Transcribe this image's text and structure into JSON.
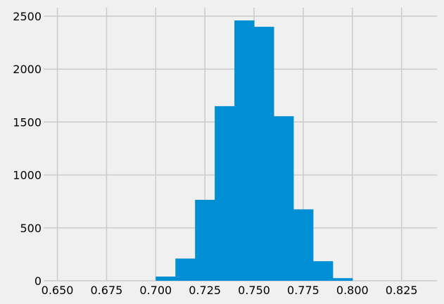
{
  "chart_data": {
    "type": "bar",
    "style": "histogram",
    "title": "",
    "xlabel": "",
    "ylabel": "",
    "xlim": [
      0.643,
      0.843
    ],
    "ylim": [
      0,
      2580
    ],
    "xticks": [
      0.65,
      0.675,
      0.7,
      0.725,
      0.75,
      0.775,
      0.8,
      0.825
    ],
    "xtick_labels": [
      "0.650",
      "0.675",
      "0.700",
      "0.725",
      "0.750",
      "0.775",
      "0.800",
      "0.825"
    ],
    "yticks": [
      0,
      500,
      1000,
      1500,
      2000,
      2500
    ],
    "ytick_labels": [
      "0",
      "500",
      "1000",
      "1500",
      "2000",
      "2500"
    ],
    "grid": true,
    "legend": "none",
    "bin_edges": [
      0.7,
      0.71,
      0.72,
      0.73,
      0.74,
      0.75,
      0.76,
      0.77,
      0.78,
      0.79,
      0.8
    ],
    "values": [
      40,
      210,
      765,
      1650,
      2460,
      2400,
      1555,
      675,
      185,
      25
    ],
    "colors": {
      "bar": "#008fd5",
      "background": "#f0f0f0",
      "grid": "#cbcbcb",
      "text": "#000000"
    }
  }
}
